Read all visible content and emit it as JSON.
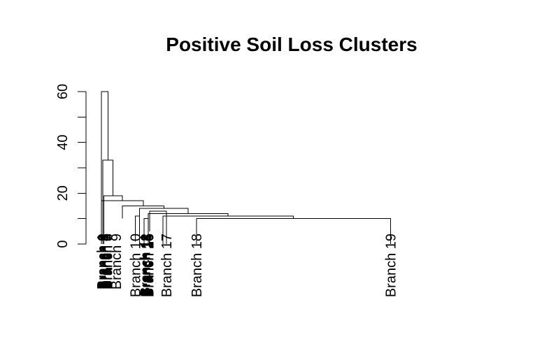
{
  "chart_data": {
    "type": "dendrogram",
    "title": "Positive Soil Loss Clusters",
    "xlabel": "",
    "ylabel": "",
    "ylim": [
      0,
      60
    ],
    "yticks": [
      0,
      20,
      40,
      60
    ],
    "grid": false,
    "leaves": [
      "Branch 1",
      "Branch 2",
      "Branch 3",
      "Branch 4",
      "Branch 5",
      "Branch 6",
      "Branch 7",
      "Branch 8",
      "Branch 9",
      "Branch 10",
      "Branch 11",
      "Branch 12",
      "Branch 13",
      "Branch 14",
      "Branch 15",
      "Branch 16",
      "Branch 17",
      "Branch 18",
      "Branch 19"
    ],
    "leaf_positions": [
      0.3,
      0.6,
      0.9,
      1.2,
      1.5,
      1.8,
      2.1,
      2.4,
      5.8,
      13.5,
      17.3,
      17.6,
      17.9,
      18.2,
      18.5,
      18.8,
      25.8,
      37.8,
      114.8
    ],
    "merges": [
      {
        "height": 11,
        "left": [
          13.5,
          1.0
        ],
        "right": [
          15.1,
          0.8
        ]
      },
      {
        "height": 10,
        "left": [
          17.0,
          0.0
        ],
        "right": [
          18.6,
          0.0
        ]
      },
      {
        "height": 13,
        "left": [
          19.1,
          5.0
        ],
        "right": [
          25.8,
          0.0
        ]
      },
      {
        "height": 10,
        "left": [
          37.8,
          0.0
        ],
        "right": [
          114.8,
          0.0
        ]
      },
      {
        "height": 11,
        "left": [
          24.4,
          0.0
        ],
        "right": [
          76.3,
          10.0
        ]
      },
      {
        "height": 12,
        "left": [
          18.6,
          0.0
        ],
        "right": [
          50.3,
          11.0
        ]
      },
      {
        "height": 14,
        "left": [
          15.1,
          0.0
        ],
        "right": [
          34.5,
          12.0
        ]
      },
      {
        "height": 15,
        "left": [
          8.3,
          10.0
        ],
        "right": [
          24.8,
          14.0
        ]
      },
      {
        "height": 17,
        "left": [
          0.0,
          0.0
        ],
        "right": [
          16.6,
          15.0
        ]
      },
      {
        "height": 19,
        "left": [
          1.0,
          0.0
        ],
        "right": [
          8.3,
          17.0
        ]
      },
      {
        "height": 33,
        "left": [
          0.6,
          0.0
        ],
        "right": [
          4.6,
          19.0
        ]
      },
      {
        "height": 60,
        "left": [
          0.0,
          0.0
        ],
        "right": [
          2.6,
          33.0
        ]
      }
    ]
  }
}
